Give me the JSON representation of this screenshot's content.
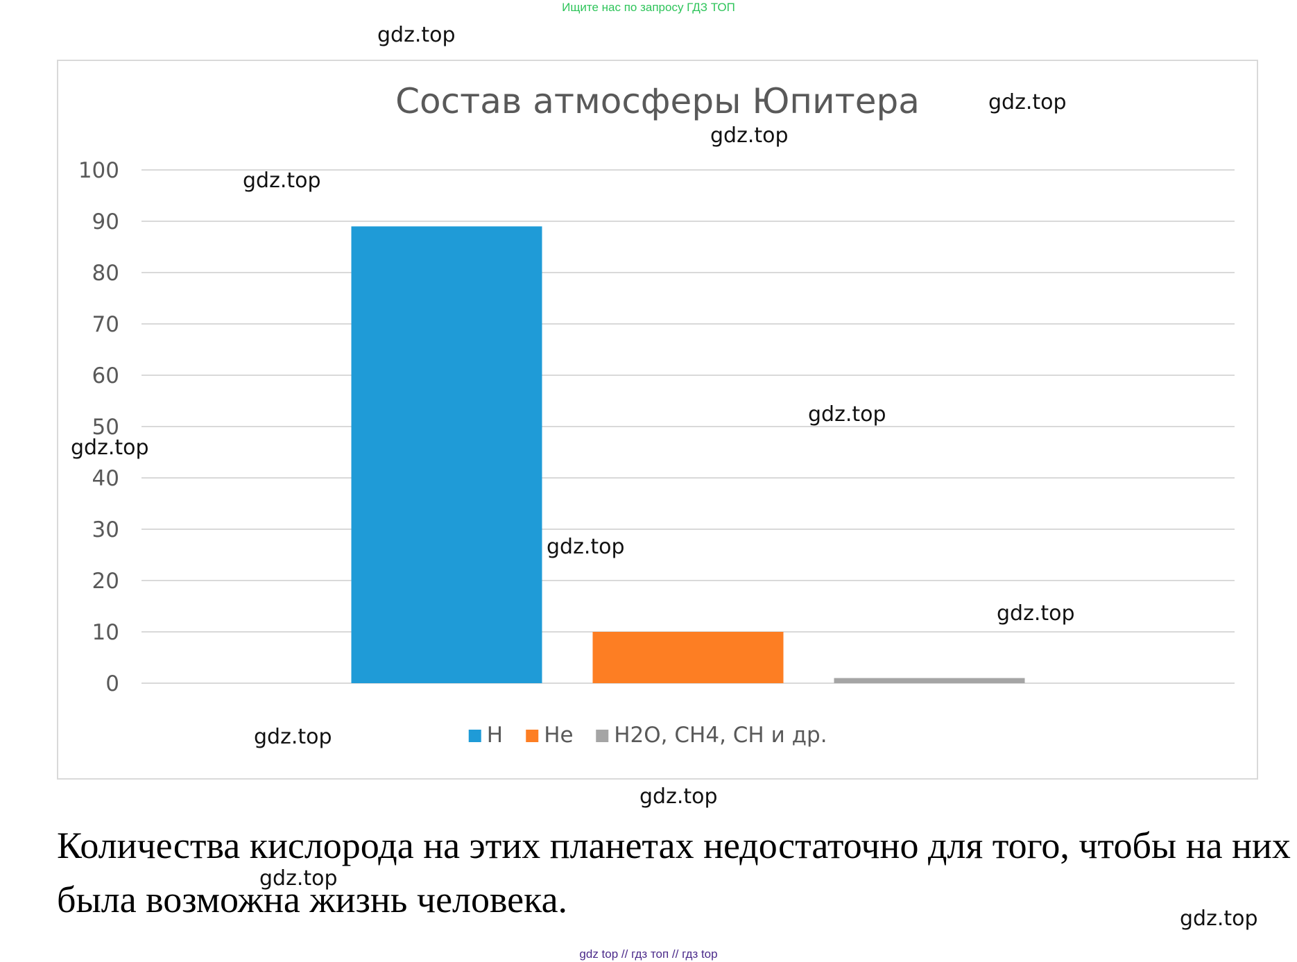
{
  "header": {
    "search_hint": "Ищите нас по запросу ГДЗ ТОП",
    "search_hint_color": "#2ec45a"
  },
  "watermarks": {
    "text": "gdz.top"
  },
  "chart_data": {
    "type": "bar",
    "title": "Состав атмосферы Юпитера",
    "xlabel": "",
    "ylabel": "",
    "ylim": [
      0,
      100
    ],
    "y_ticks": [
      "0",
      "10",
      "20",
      "30",
      "40",
      "50",
      "60",
      "70",
      "80",
      "90",
      "100"
    ],
    "grid": true,
    "legend_position": "bottom",
    "series": [
      {
        "name": "H",
        "value": 89,
        "color": "#1f9bd7"
      },
      {
        "name": "He",
        "value": 10,
        "color": "#fd7e23"
      },
      {
        "name": "H2O, CH4, CH и др.",
        "value": 1,
        "color": "#a5a5a5"
      }
    ]
  },
  "conclusion": {
    "text": "Количества кислорода на этих планетах недостаточно для того, чтобы на них была возможна жизнь человека."
  },
  "footer": {
    "text": "gdz top  //  гдз топ  //  гдз top",
    "color": "#4b2a8a"
  }
}
